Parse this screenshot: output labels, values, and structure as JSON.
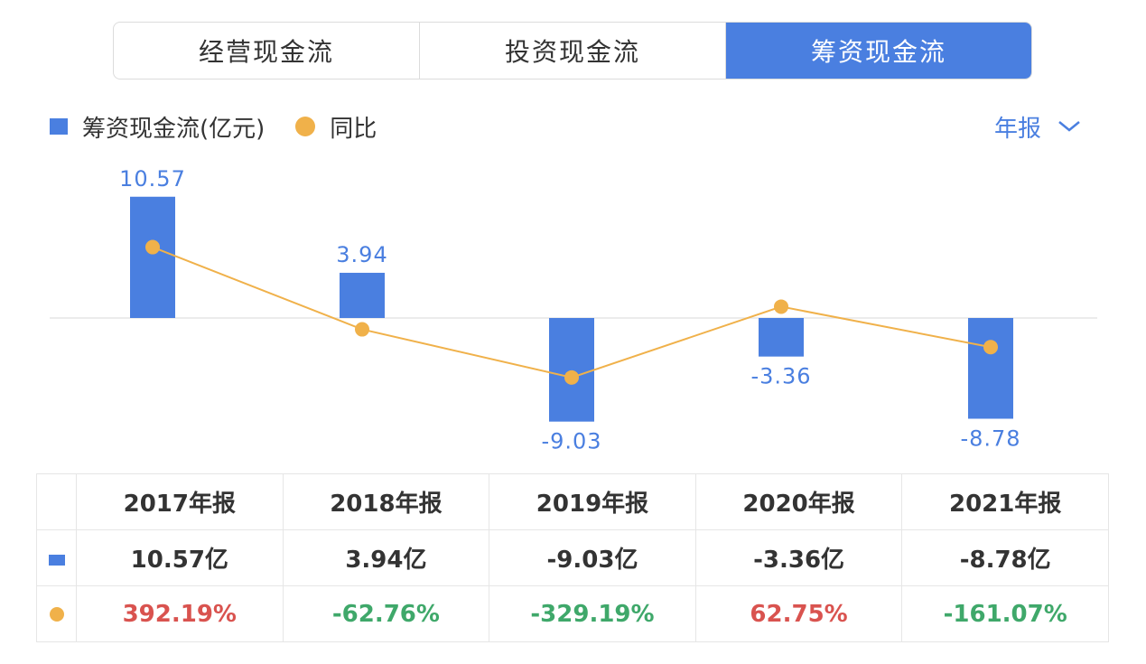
{
  "tabs": [
    {
      "label": "经营现金流",
      "active": false
    },
    {
      "label": "投资现金流",
      "active": false
    },
    {
      "label": "筹资现金流",
      "active": true
    }
  ],
  "legend": {
    "bar_label": "筹资现金流(亿元)",
    "line_label": "同比"
  },
  "period_selector": {
    "label": "年报",
    "icon": "chevron-down-icon"
  },
  "colors": {
    "bar": "#4a7fe0",
    "line": "#f0b14a",
    "positive": "#d9534f",
    "negative": "#3fa86a"
  },
  "chart_data": {
    "type": "bar",
    "categories": [
      "2017年报",
      "2018年报",
      "2019年报",
      "2020年报",
      "2021年报"
    ],
    "series": [
      {
        "name": "筹资现金流(亿元)",
        "type": "bar",
        "values": [
          10.57,
          3.94,
          -9.03,
          -3.36,
          -8.78
        ],
        "labels": [
          "10.57",
          "3.94",
          "-9.03",
          "-3.36",
          "-8.78"
        ]
      },
      {
        "name": "同比",
        "type": "line",
        "unit": "%",
        "values": [
          392.19,
          -62.76,
          -329.19,
          62.75,
          -161.07
        ]
      }
    ]
  },
  "table": {
    "headers": [
      "2017年报",
      "2018年报",
      "2019年报",
      "2020年报",
      "2021年报"
    ],
    "values": [
      "10.57亿",
      "3.94亿",
      "-9.03亿",
      "-3.36亿",
      "-8.78亿"
    ],
    "yoy": [
      "392.19%",
      "-62.76%",
      "-329.19%",
      "62.75%",
      "-161.07%"
    ]
  }
}
